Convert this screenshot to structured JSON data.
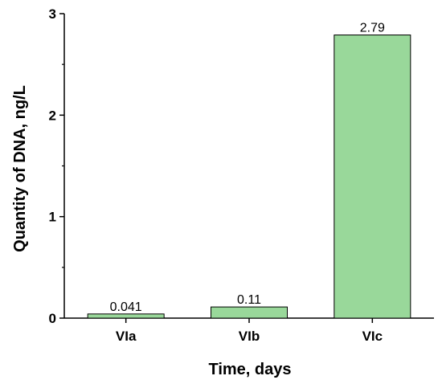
{
  "chart_data": {
    "type": "bar",
    "categories": [
      "VIa",
      "VIb",
      "VIc"
    ],
    "values": [
      0.041,
      0.11,
      2.79
    ],
    "data_labels": [
      "0.041",
      "0.11",
      "2.79"
    ],
    "xlabel": "Time, days",
    "ylabel": "Quantity of DNA, ng/L",
    "ylim": [
      0,
      3
    ],
    "yticks": [
      0,
      1,
      2,
      3
    ],
    "grid": false,
    "bar_color": "#99d89a",
    "bar_edge_color": "#000000"
  }
}
